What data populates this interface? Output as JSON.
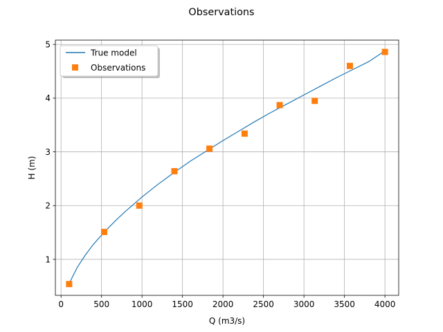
{
  "chart_data": {
    "type": "line",
    "title": "Observations",
    "xlabel": "Q (m3/s)",
    "ylabel": "H (m)",
    "xlim": [
      -70,
      4170
    ],
    "ylim": [
      0.33,
      5.08
    ],
    "xticks": [
      0,
      500,
      1000,
      1500,
      2000,
      2500,
      3000,
      3500,
      4000
    ],
    "yticks": [
      1,
      2,
      3,
      4,
      5
    ],
    "grid": true,
    "legend_position": "top-left",
    "series": [
      {
        "name": "True model",
        "kind": "line",
        "color": "#1f77b4",
        "x": [
          100,
          200,
          300,
          400,
          500,
          600,
          700,
          800,
          900,
          1000,
          1200,
          1400,
          1600,
          1800,
          2000,
          2200,
          2400,
          2600,
          2800,
          3000,
          3200,
          3400,
          3600,
          3800,
          4000
        ],
        "y": [
          0.55,
          0.85,
          1.08,
          1.28,
          1.45,
          1.61,
          1.76,
          1.9,
          2.03,
          2.16,
          2.4,
          2.62,
          2.83,
          3.02,
          3.21,
          3.39,
          3.57,
          3.74,
          3.9,
          4.06,
          4.22,
          4.38,
          4.53,
          4.68,
          4.88
        ]
      },
      {
        "name": "Observations",
        "kind": "scatter",
        "marker": "square",
        "color": "#ff7f0e",
        "x": [
          100,
          533,
          967,
          1400,
          1833,
          2267,
          2700,
          3133,
          3567,
          4000
        ],
        "y": [
          0.54,
          1.51,
          2.0,
          2.64,
          3.06,
          3.34,
          3.87,
          3.95,
          4.6,
          4.86
        ]
      }
    ]
  }
}
